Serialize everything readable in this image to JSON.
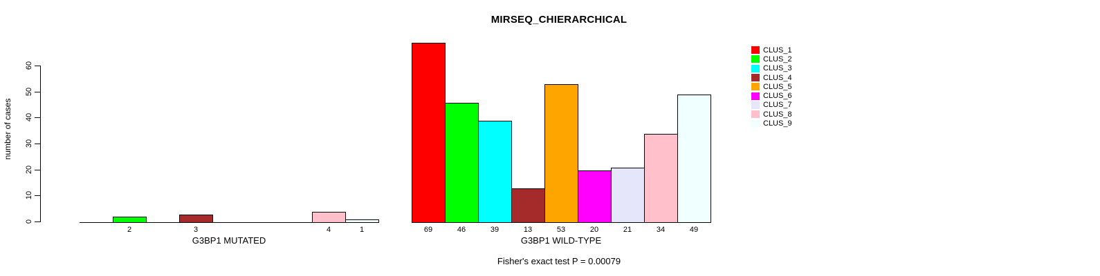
{
  "title": "MIRSEQ_CHIERARCHICAL",
  "footer": "Fisher's exact test P = 0.00079",
  "chart_data": {
    "type": "bar",
    "title": "MIRSEQ_CHIERARCHICAL",
    "xlabel": "",
    "ylabel": "number of cases",
    "yticks": [
      0,
      10,
      20,
      30,
      40,
      50,
      60
    ],
    "ylim": [
      0,
      69
    ],
    "grid": false,
    "legend_position": "right",
    "series": [
      "CLUS_1",
      "CLUS_2",
      "CLUS_3",
      "CLUS_4",
      "CLUS_5",
      "CLUS_6",
      "CLUS_7",
      "CLUS_8",
      "CLUS_9"
    ],
    "colors": [
      "#FF0000",
      "#00FF00",
      "#00FFFF",
      "#A52A2A",
      "#FFA500",
      "#FF00FF",
      "#E6E6FA",
      "#FFC0CB",
      "#F0FFFF"
    ],
    "groups": [
      {
        "label": "G3BP1 MUTATED",
        "values": [
          0,
          2,
          0,
          3,
          0,
          0,
          0,
          4,
          1
        ],
        "bar_labels": [
          "",
          "2",
          "",
          "3",
          "",
          "",
          "",
          "4",
          "1"
        ]
      },
      {
        "label": "G3BP1 WILD-TYPE",
        "values": [
          69,
          46,
          39,
          13,
          53,
          20,
          21,
          34,
          49
        ],
        "bar_labels": [
          "69",
          "46",
          "39",
          "13",
          "53",
          "20",
          "21",
          "34",
          "49"
        ]
      }
    ],
    "annotation": "Fisher's exact test P = 0.00079"
  },
  "legend": {
    "items": [
      {
        "label": "CLUS_1",
        "color": "#FF0000"
      },
      {
        "label": "CLUS_2",
        "color": "#00FF00"
      },
      {
        "label": "CLUS_3",
        "color": "#00FFFF"
      },
      {
        "label": "CLUS_4",
        "color": "#A52A2A"
      },
      {
        "label": "CLUS_5",
        "color": "#FFA500"
      },
      {
        "label": "CLUS_6",
        "color": "#FF00FF"
      },
      {
        "label": "CLUS_7",
        "color": "#E6E6FA"
      },
      {
        "label": "CLUS_8",
        "color": "#FFC0CB"
      },
      {
        "label": "CLUS_9",
        "color": "#F0FFFF"
      }
    ]
  }
}
